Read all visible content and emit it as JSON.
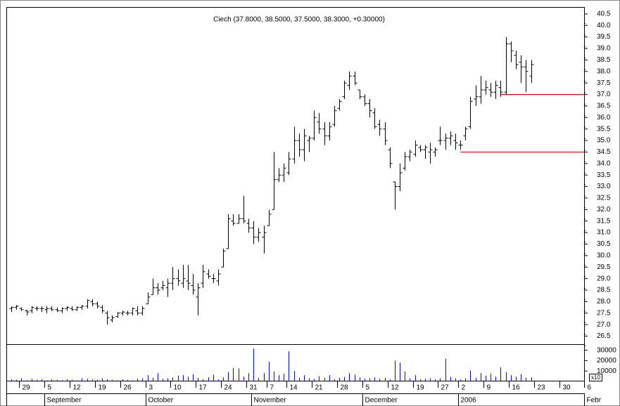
{
  "chart_data": {
    "type": "ohlc",
    "title": "Ciech (37.8000, 38.5000, 37.5000, 38.3000, +0.30000)",
    "categories": [
      null,
      null,
      "29",
      null,
      null,
      null,
      null,
      "5",
      null,
      null,
      null,
      null,
      "12",
      null,
      null,
      null,
      null,
      "19",
      null,
      null,
      null,
      null,
      "26",
      null,
      null,
      null,
      null,
      "3",
      null,
      null,
      null,
      null,
      "10",
      null,
      null,
      null,
      null,
      "17",
      null,
      null,
      null,
      null,
      "24",
      null,
      null,
      null,
      null,
      "31",
      null,
      null,
      null,
      "7",
      null,
      null,
      null,
      "14",
      null,
      null,
      null,
      null,
      "21",
      null,
      null,
      null,
      null,
      "28",
      null,
      null,
      null,
      null,
      "5",
      null,
      null,
      null,
      null,
      "12",
      null,
      null,
      null,
      null,
      "19",
      null,
      null,
      null,
      null,
      "27",
      null,
      null,
      null,
      "2",
      null,
      null,
      null,
      null,
      "9",
      null,
      null,
      null,
      null,
      "16",
      null,
      null,
      null,
      null,
      "23",
      null,
      null,
      null,
      null,
      "30",
      null,
      null,
      null,
      null,
      "6"
    ],
    "months": [
      {
        "label": "September",
        "start": 7
      },
      {
        "label": "October",
        "start": 27
      },
      {
        "label": "November",
        "start": 48
      },
      {
        "label": "December",
        "start": 70
      },
      {
        "label": "2006",
        "start": 89
      },
      {
        "label": "Febr",
        "start": 114
      }
    ],
    "ohlc": [
      [
        27.7,
        27.8,
        27.55,
        27.75
      ],
      [
        27.75,
        27.85,
        27.65,
        27.8
      ],
      [
        27.7,
        27.75,
        27.6,
        27.65
      ],
      [
        27.6,
        27.65,
        27.4,
        27.55
      ],
      [
        27.6,
        27.8,
        27.5,
        27.75
      ],
      [
        27.7,
        27.8,
        27.6,
        27.7
      ],
      [
        27.7,
        27.8,
        27.55,
        27.7
      ],
      [
        27.65,
        27.8,
        27.5,
        27.7
      ],
      [
        27.7,
        27.8,
        27.6,
        27.65
      ],
      [
        27.65,
        27.75,
        27.55,
        27.6
      ],
      [
        27.6,
        27.75,
        27.5,
        27.7
      ],
      [
        27.7,
        27.8,
        27.6,
        27.75
      ],
      [
        27.7,
        27.8,
        27.6,
        27.65
      ],
      [
        27.65,
        27.8,
        27.6,
        27.75
      ],
      [
        27.75,
        27.85,
        27.65,
        27.8
      ],
      [
        27.8,
        28.1,
        27.7,
        28.05
      ],
      [
        28.0,
        28.1,
        27.8,
        27.9
      ],
      [
        27.9,
        28.0,
        27.7,
        27.8
      ],
      [
        27.75,
        27.85,
        27.5,
        27.6
      ],
      [
        27.5,
        27.6,
        27.0,
        27.3
      ],
      [
        27.2,
        27.4,
        27.1,
        27.3
      ],
      [
        27.35,
        27.55,
        27.3,
        27.5
      ],
      [
        27.5,
        27.6,
        27.4,
        27.55
      ],
      [
        27.5,
        27.6,
        27.4,
        27.5
      ],
      [
        27.5,
        27.75,
        27.4,
        27.7
      ],
      [
        27.6,
        27.8,
        27.4,
        27.5
      ],
      [
        27.5,
        27.8,
        27.4,
        27.7
      ],
      [
        27.9,
        28.4,
        27.9,
        28.2
      ],
      [
        28.3,
        29.0,
        28.3,
        28.6
      ],
      [
        28.6,
        28.8,
        28.3,
        28.5
      ],
      [
        28.6,
        28.9,
        28.5,
        28.7
      ],
      [
        28.6,
        29.0,
        28.2,
        28.8
      ],
      [
        28.8,
        29.5,
        28.5,
        29.0
      ],
      [
        29.0,
        29.4,
        28.7,
        28.9
      ],
      [
        28.8,
        29.6,
        28.6,
        29.0
      ],
      [
        28.9,
        29.6,
        28.5,
        28.8
      ],
      [
        28.7,
        29.2,
        28.3,
        28.5
      ],
      [
        28.2,
        28.8,
        27.4,
        28.6
      ],
      [
        28.8,
        29.6,
        28.6,
        29.3
      ],
      [
        29.2,
        29.4,
        29.0,
        29.1
      ],
      [
        29.0,
        29.2,
        28.8,
        29.0
      ],
      [
        28.9,
        29.4,
        28.7,
        29.2
      ],
      [
        29.5,
        30.3,
        29.5,
        30.2
      ],
      [
        30.3,
        31.8,
        30.3,
        31.6
      ],
      [
        31.5,
        31.8,
        31.3,
        31.4
      ],
      [
        31.4,
        31.8,
        31.4,
        31.6
      ],
      [
        31.6,
        32.6,
        31.4,
        31.5
      ],
      [
        31.4,
        31.6,
        31.0,
        31.2
      ],
      [
        31.2,
        31.5,
        30.5,
        30.8
      ],
      [
        30.8,
        31.2,
        30.6,
        31.0
      ],
      [
        30.8,
        31.3,
        30.1,
        31.0
      ],
      [
        31.3,
        32.0,
        31.3,
        31.8
      ],
      [
        32.0,
        34.5,
        32.0,
        33.3
      ],
      [
        33.3,
        33.8,
        33.2,
        33.5
      ],
      [
        33.5,
        34.0,
        33.2,
        33.8
      ],
      [
        33.6,
        34.5,
        33.5,
        34.2
      ],
      [
        34.2,
        35.6,
        34.0,
        35.0
      ],
      [
        35.0,
        35.3,
        34.3,
        34.6
      ],
      [
        34.6,
        35.5,
        34.1,
        35.2
      ],
      [
        35.0,
        35.2,
        34.5,
        35.1
      ],
      [
        35.1,
        36.3,
        35.0,
        36.0
      ],
      [
        35.8,
        36.2,
        35.3,
        35.5
      ],
      [
        35.5,
        35.8,
        34.8,
        35.2
      ],
      [
        35.2,
        35.8,
        35.0,
        35.6
      ],
      [
        35.7,
        36.5,
        35.6,
        36.3
      ],
      [
        36.4,
        36.8,
        36.3,
        36.7
      ],
      [
        36.9,
        37.6,
        36.8,
        37.5
      ],
      [
        37.4,
        38.0,
        37.2,
        37.8
      ],
      [
        37.8,
        38.0,
        37.4,
        37.5
      ],
      [
        37.2,
        37.2,
        36.8,
        36.9
      ],
      [
        36.9,
        37.0,
        36.5,
        36.6
      ],
      [
        36.6,
        36.8,
        36.0,
        36.3
      ],
      [
        36.2,
        36.4,
        35.5,
        35.6
      ],
      [
        35.7,
        35.9,
        35.2,
        35.5
      ],
      [
        35.5,
        35.8,
        34.8,
        35.0
      ],
      [
        34.6,
        34.7,
        33.8,
        34.0
      ],
      [
        33.2,
        33.2,
        32.0,
        33.0
      ],
      [
        33.0,
        34.0,
        32.8,
        33.6
      ],
      [
        33.8,
        34.5,
        33.7,
        34.3
      ],
      [
        34.3,
        34.6,
        34.1,
        34.5
      ],
      [
        34.4,
        35.0,
        34.3,
        34.8
      ],
      [
        34.7,
        34.8,
        34.5,
        34.6
      ],
      [
        34.6,
        34.8,
        34.2,
        34.7
      ],
      [
        34.5,
        34.9,
        34.0,
        34.6
      ],
      [
        34.5,
        34.7,
        34.3,
        34.6
      ],
      [
        35.0,
        35.6,
        34.8,
        35.0
      ],
      [
        35.0,
        35.3,
        34.6,
        35.1
      ],
      [
        35.1,
        35.4,
        34.8,
        35.2
      ],
      [
        35.0,
        35.3,
        34.6,
        34.9
      ],
      [
        34.8,
        35.0,
        34.6,
        34.8
      ],
      [
        35.2,
        35.6,
        35.0,
        35.5
      ],
      [
        35.6,
        36.9,
        35.5,
        36.7
      ],
      [
        36.8,
        37.4,
        36.5,
        36.9
      ],
      [
        36.9,
        37.8,
        36.6,
        37.2
      ],
      [
        37.2,
        37.6,
        37.0,
        37.3
      ],
      [
        37.2,
        37.5,
        36.9,
        37.1
      ],
      [
        37.1,
        37.6,
        36.8,
        37.4
      ],
      [
        37.3,
        37.6,
        36.9,
        37.1
      ],
      [
        37.1,
        39.5,
        37.0,
        39.2
      ],
      [
        39.2,
        39.3,
        38.4,
        38.9
      ],
      [
        38.7,
        38.9,
        38.1,
        38.3
      ],
      [
        38.4,
        38.7,
        37.5,
        38.2
      ],
      [
        38.2,
        38.5,
        37.1,
        38.0
      ],
      [
        37.8,
        38.5,
        37.5,
        38.3
      ],
      null,
      null,
      null,
      null,
      null,
      null,
      null,
      null,
      null,
      null,
      null
    ],
    "volume": [
      2000,
      1500,
      3000,
      1000,
      2500,
      1500,
      2000,
      1000,
      2000,
      1500,
      1000,
      2000,
      1500,
      1000,
      3000,
      2500,
      2000,
      1500,
      3000,
      2000,
      1500,
      1000,
      2000,
      1500,
      1000,
      2500,
      3000,
      6000,
      3500,
      8000,
      2500,
      3000,
      4000,
      5500,
      6000,
      4500,
      7000,
      3500,
      2000,
      4000,
      6500,
      2000,
      4000,
      9000,
      13000,
      12500,
      4500,
      8000,
      31500,
      3500,
      8000,
      19000,
      9500,
      6000,
      7500,
      29000,
      10000,
      3500,
      6000,
      3000,
      2500,
      5000,
      3500,
      6000,
      2000,
      3500,
      4500,
      8000,
      6500,
      4000,
      2500,
      3000,
      4000,
      2500,
      3500,
      2000,
      20000,
      18000,
      9500,
      3000,
      6000,
      2000,
      2500,
      3000,
      2000,
      3000,
      22000,
      4500,
      3000,
      2000,
      3000,
      10500,
      3500,
      8000,
      5500,
      7500,
      4500,
      13500,
      9000,
      6000,
      4500,
      7000,
      3500,
      4000,
      null,
      null,
      null,
      null,
      null,
      null,
      null,
      null,
      null,
      null,
      null
    ],
    "volume_color": "#0000ff",
    "bar_color": "#000000",
    "support_lines": [
      {
        "price": 37.0,
        "start": 97,
        "color": "#e00000"
      },
      {
        "price": 34.5,
        "start": 89,
        "color": "#e00000"
      }
    ],
    "ylim": [
      26.15,
      40.8
    ],
    "yticks": [
      {
        "value": 26.5,
        "label": "26.5"
      },
      {
        "value": 27,
        "label": "27.0"
      },
      {
        "value": 27.5,
        "label": "27.5"
      },
      {
        "value": 28,
        "label": "28.0"
      },
      {
        "value": 28.5,
        "label": "28.5"
      },
      {
        "value": 29,
        "label": "29.0"
      },
      {
        "value": 29.5,
        "label": "29.5"
      },
      {
        "value": 30,
        "label": "30.0"
      },
      {
        "value": 30.5,
        "label": "30.5"
      },
      {
        "value": 31,
        "label": "31.0"
      },
      {
        "value": 31.5,
        "label": "31.5"
      },
      {
        "value": 32,
        "label": "32.0"
      },
      {
        "value": 32.5,
        "label": "32.5"
      },
      {
        "value": 33,
        "label": "33.0"
      },
      {
        "value": 33.5,
        "label": "33.5"
      },
      {
        "value": 34,
        "label": "34.0"
      },
      {
        "value": 34.5,
        "label": "34.5"
      },
      {
        "value": 35,
        "label": "35.0"
      },
      {
        "value": 35.5,
        "label": "35.5"
      },
      {
        "value": 36,
        "label": "36.0"
      },
      {
        "value": 36.5,
        "label": "36.5"
      },
      {
        "value": 37,
        "label": "37.0"
      },
      {
        "value": 37.5,
        "label": "37.5"
      },
      {
        "value": 38,
        "label": "38.0"
      },
      {
        "value": 38.5,
        "label": "38.5"
      },
      {
        "value": 39,
        "label": "39.0"
      },
      {
        "value": 39.5,
        "label": "39.5"
      },
      {
        "value": 40,
        "label": "40.0"
      },
      {
        "value": 40.5,
        "label": "40.5"
      }
    ],
    "y2lim": [
      0,
      34000
    ],
    "y2ticks": [
      10000,
      20000,
      30000
    ],
    "volume_unit": "x10"
  }
}
